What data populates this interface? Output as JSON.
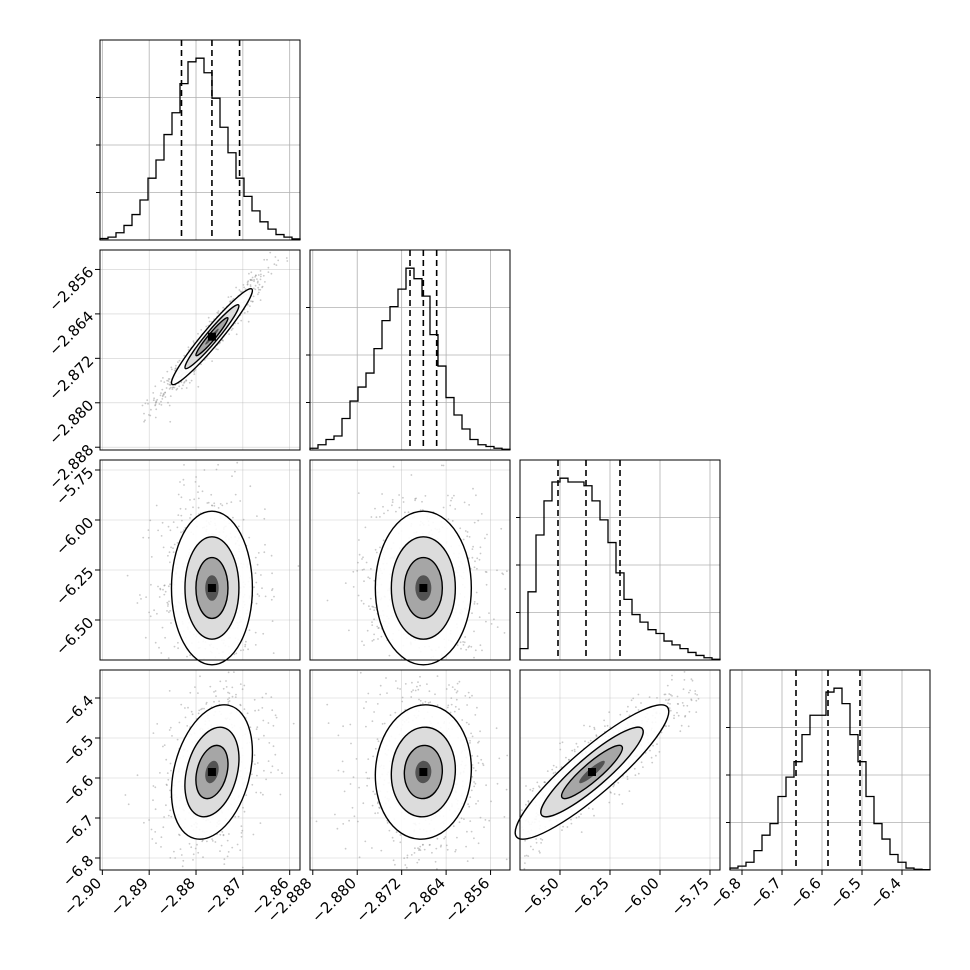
{
  "chart_data": {
    "type": "corner",
    "parameters": 4,
    "ticks": {
      "x": [
        [
          "−2.90",
          "−2.89",
          "−2.88",
          "−2.87",
          "−2.86"
        ],
        [
          "−2.888",
          "−2.880",
          "−2.872",
          "−2.864",
          "−2.856"
        ],
        [
          "−6.50",
          "−6.25",
          "−6.00",
          "−5.75"
        ],
        [
          "−6.8",
          "−6.7",
          "−6.6",
          "−6.5",
          "−6.4"
        ]
      ],
      "y": [
        [],
        [
          "−2.888",
          "−2.880",
          "−2.872",
          "−2.864",
          "−2.856"
        ],
        [
          "−6.50",
          "−6.25",
          "−6.00",
          "−5.75"
        ],
        [
          "−6.8",
          "−6.7",
          "−6.6",
          "−6.5",
          "−6.4"
        ]
      ]
    },
    "tick_values": [
      [
        -2.9,
        -2.89,
        -2.88,
        -2.87,
        -2.86
      ],
      [
        -2.888,
        -2.88,
        -2.872,
        -2.864,
        -2.856
      ],
      [
        -6.5,
        -6.25,
        -6.0,
        -5.75
      ],
      [
        -6.8,
        -6.7,
        -6.6,
        -6.5,
        -6.4
      ]
    ],
    "ranges": [
      [
        -2.9005,
        -2.8578
      ],
      [
        -2.8885,
        -2.8525
      ],
      [
        -6.7,
        -5.7
      ],
      [
        -6.83,
        -6.33
      ]
    ],
    "histograms": [
      {
        "bins": 25,
        "counts": [
          0.4,
          0.8,
          2,
          4,
          7,
          11,
          17,
          22,
          29,
          35,
          43,
          49,
          50,
          46,
          39,
          31,
          24,
          17,
          12,
          8,
          5,
          3,
          1.5,
          0.8,
          0.3
        ],
        "quantiles": [
          -2.8831,
          -2.8766,
          -2.8707
        ]
      },
      {
        "bins": 25,
        "counts": [
          0.5,
          1.5,
          3,
          4,
          9,
          14,
          18,
          22,
          29,
          37,
          41,
          46,
          52,
          49,
          44,
          33,
          24,
          15,
          10,
          6,
          3,
          1.5,
          1,
          0.5,
          0.2
        ],
        "quantiles": [
          -2.8705,
          -2.8681,
          -2.8657
        ]
      },
      {
        "bins": 25,
        "counts": [
          3,
          18,
          33,
          42,
          47,
          48,
          47,
          47,
          46,
          42,
          37,
          31,
          23,
          16,
          12,
          10,
          8,
          7,
          5,
          4,
          3,
          2,
          1.2,
          0.6,
          0.2
        ],
        "quantiles": [
          -6.51,
          -6.37,
          -6.2
        ]
      },
      {
        "bins": 25,
        "counts": [
          0.5,
          1,
          2,
          5,
          9,
          12,
          19,
          24,
          28,
          35,
          40,
          40,
          46,
          47,
          43,
          35,
          28,
          19,
          12,
          8,
          4,
          2,
          0.5,
          0.2,
          0.1
        ],
        "quantiles": [
          -6.665,
          -6.585,
          -6.505
        ]
      }
    ],
    "pairs": [
      {
        "row": 1,
        "col": 0,
        "mean": [
          -2.8766,
          -2.8681
        ],
        "sd": [
          0.0036,
          0.0036
        ],
        "rho": 0.96
      },
      {
        "row": 2,
        "col": 0,
        "mean": [
          -2.8766,
          -6.34
        ],
        "sd": [
          0.0036,
          0.16
        ],
        "rho": 0.0
      },
      {
        "row": 2,
        "col": 1,
        "mean": [
          -2.8681,
          -6.34
        ],
        "sd": [
          0.0036,
          0.16
        ],
        "rho": 0.0
      },
      {
        "row": 3,
        "col": 0,
        "mean": [
          -2.8766,
          -6.585
        ],
        "sd": [
          0.0036,
          0.07
        ],
        "rho": 0.3
      },
      {
        "row": 3,
        "col": 1,
        "mean": [
          -2.8681,
          -6.585
        ],
        "sd": [
          0.0036,
          0.07
        ],
        "rho": 0.05
      },
      {
        "row": 3,
        "col": 2,
        "mean": [
          -6.34,
          -6.585
        ],
        "sd": [
          0.16,
          0.07
        ],
        "rho": 0.9
      }
    ],
    "grid": true,
    "colors": {
      "hist": "#000000",
      "points": "#888888",
      "density": "#000000",
      "grid": "#b0b0b0"
    }
  }
}
